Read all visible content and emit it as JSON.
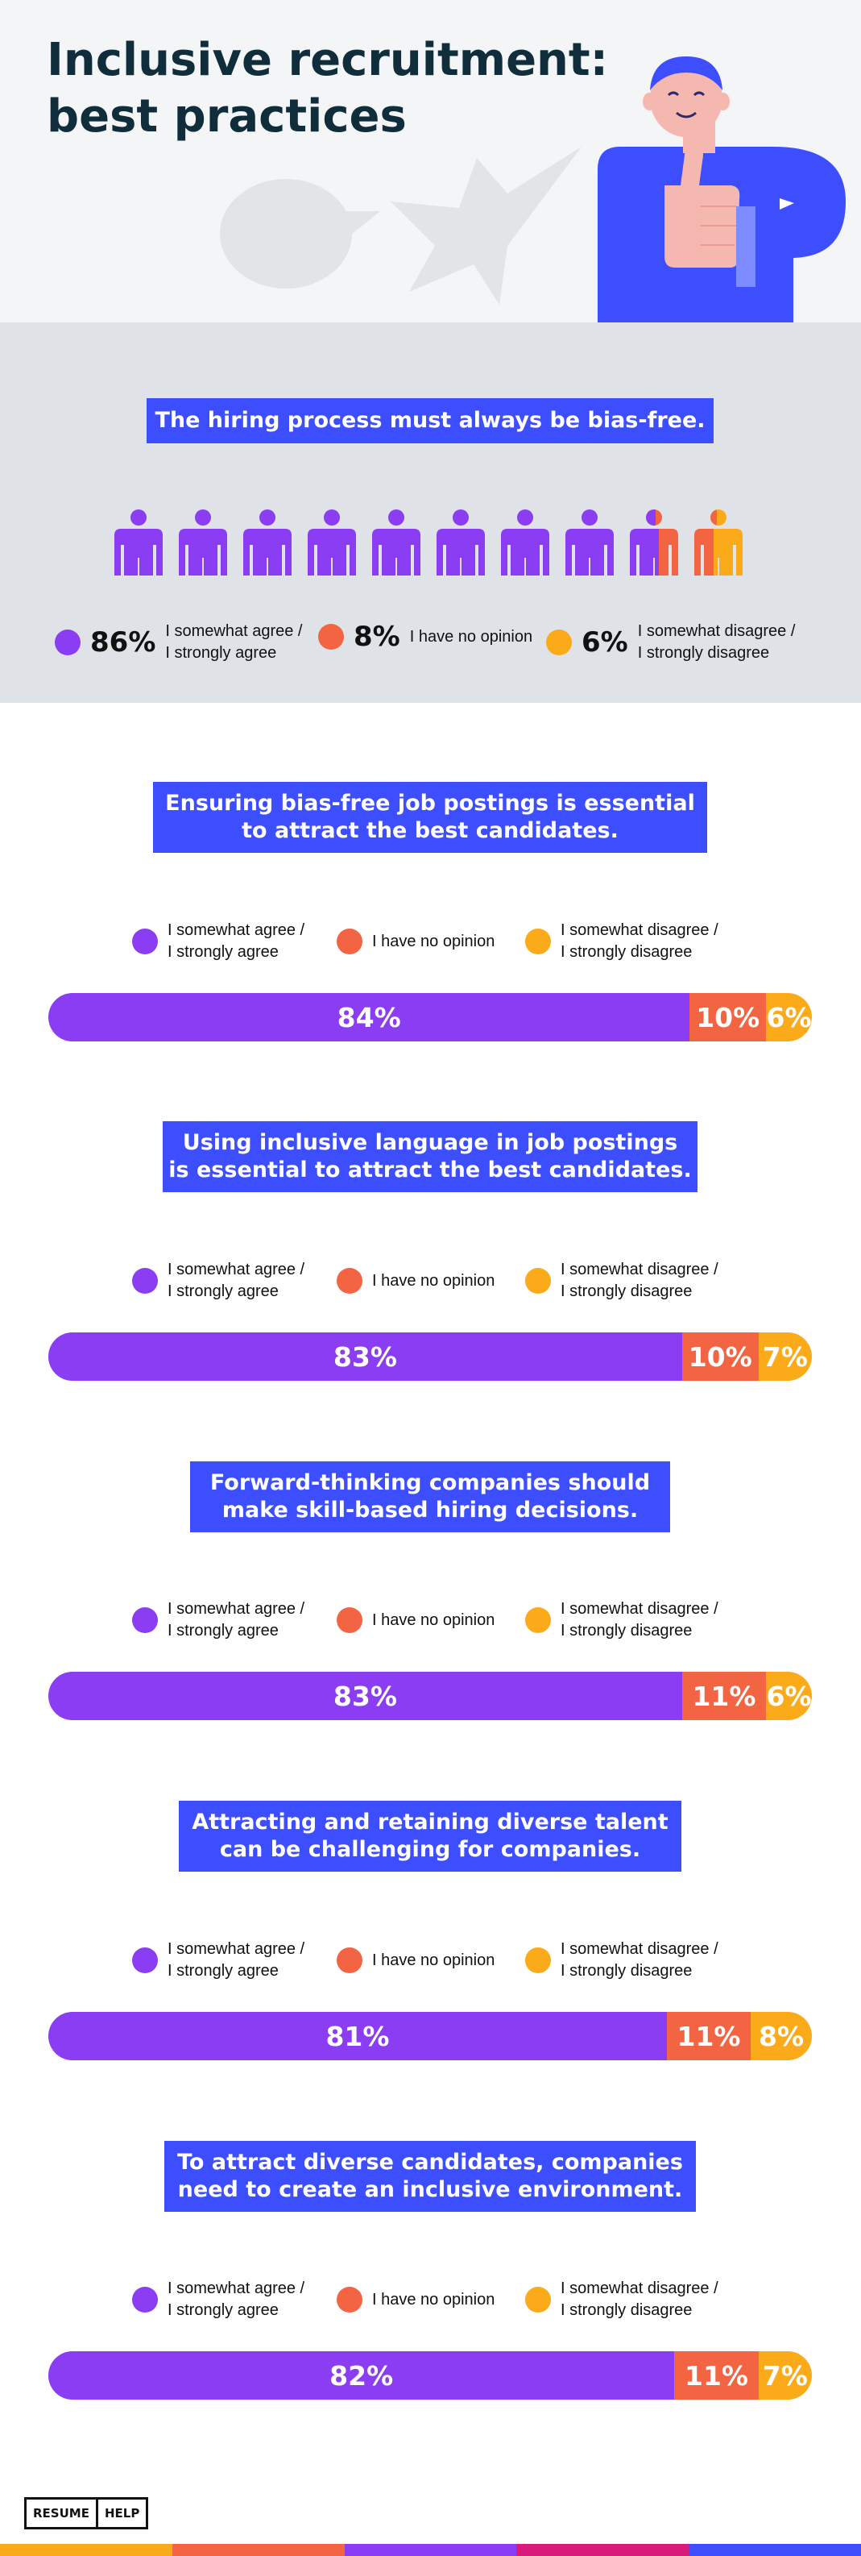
{
  "colors": {
    "agree": "#8a3df2",
    "no_opinion": "#f26442",
    "disagree": "#fbaa1a",
    "accent": "#3d4eff",
    "header_bg": "#f4f5f7",
    "band_bg": "#dfe3e8",
    "stripe": [
      "#fbaa1a",
      "#f26442",
      "#8a3df2",
      "#d81b7a",
      "#3d4eff"
    ]
  },
  "header": {
    "title_line1": "Inclusive recruitment:",
    "title_line2": "best practices"
  },
  "section1": {
    "q_line1": "The hiring process must always be bias-free.",
    "people_agree_fraction": 0.86,
    "people_no_opinion_fraction": 0.08,
    "people_disagree_fraction": 0.06,
    "stats": [
      {
        "pct": "86%",
        "label_line1": "I somewhat agree /",
        "label_line2": "I strongly agree"
      },
      {
        "pct": "8%",
        "label_line1": "I have no opinion",
        "label_line2": ""
      },
      {
        "pct": "6%",
        "label_line1": "I somewhat disagree /",
        "label_line2": "I strongly disagree"
      }
    ]
  },
  "legend": {
    "agree_line1": "I somewhat agree /",
    "agree_line2": "I strongly agree",
    "no_opinion": "I have no opinion",
    "disagree_line1": "I somewhat disagree /",
    "disagree_line2": "I strongly disagree"
  },
  "questions": [
    {
      "q_line1": "Ensuring bias-free job postings is essential",
      "q_line2": "to attract the best candidates.",
      "agree": 84,
      "no_opinion": 10,
      "disagree": 6,
      "agree_label": "84%",
      "no_opinion_label": "10%",
      "disagree_label": "6%"
    },
    {
      "q_line1": "Using inclusive language in job postings",
      "q_line2": "is essential to attract the best candidates.",
      "agree": 83,
      "no_opinion": 10,
      "disagree": 7,
      "agree_label": "83%",
      "no_opinion_label": "10%",
      "disagree_label": "7%"
    },
    {
      "q_line1": "Forward-thinking companies should",
      "q_line2": "make skill-based hiring decisions.",
      "agree": 83,
      "no_opinion": 11,
      "disagree": 6,
      "agree_label": "83%",
      "no_opinion_label": "11%",
      "disagree_label": "6%"
    },
    {
      "q_line1": "Attracting and retaining diverse talent",
      "q_line2": "can be challenging for companies.",
      "agree": 81,
      "no_opinion": 11,
      "disagree": 8,
      "agree_label": "81%",
      "no_opinion_label": "11%",
      "disagree_label": "8%"
    },
    {
      "q_line1": "To attract diverse candidates, companies",
      "q_line2": "need to create an inclusive environment.",
      "agree": 82,
      "no_opinion": 11,
      "disagree": 7,
      "agree_label": "82%",
      "no_opinion_label": "11%",
      "disagree_label": "7%"
    }
  ],
  "footer": {
    "logo_left": "RESUME",
    "logo_right": "HELP"
  }
}
